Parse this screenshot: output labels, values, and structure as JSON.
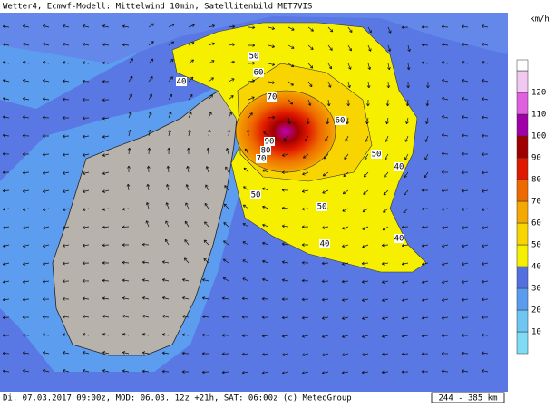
{
  "header": {
    "title": "Wetter4, Ecmwf-Modell: Mittelwind 10min, Satellitenbild MET7VIS"
  },
  "legend": {
    "unit": "km/h",
    "levels": [
      {
        "value": 10,
        "color": "#6fc6f2"
      },
      {
        "value": 20,
        "color": "#5a9cf0"
      },
      {
        "value": 30,
        "color": "#5470e0"
      },
      {
        "value": 40,
        "color": "#f6f000"
      },
      {
        "value": 50,
        "color": "#f8d400"
      },
      {
        "value": 60,
        "color": "#f4a800"
      },
      {
        "value": 70,
        "color": "#ee6a00"
      },
      {
        "value": 80,
        "color": "#e01800"
      },
      {
        "value": 90,
        "color": "#a00000"
      },
      {
        "value": 100,
        "color": "#a000a8"
      },
      {
        "value": 110,
        "color": "#e060e0"
      },
      {
        "value": 120,
        "color": "#f0c8f0"
      }
    ]
  },
  "map_labels": [
    "40",
    "50",
    "60",
    "70",
    "60",
    "50",
    "40",
    "90",
    "80",
    "70",
    "50",
    "50",
    "40",
    "40"
  ],
  "footer": {
    "info": "Di. 07.03.2017 09:00z, MOD: 06.03. 12z +21h, SAT: 06:00z (c) MeteoGroup",
    "scale": "244 - 385 km"
  }
}
